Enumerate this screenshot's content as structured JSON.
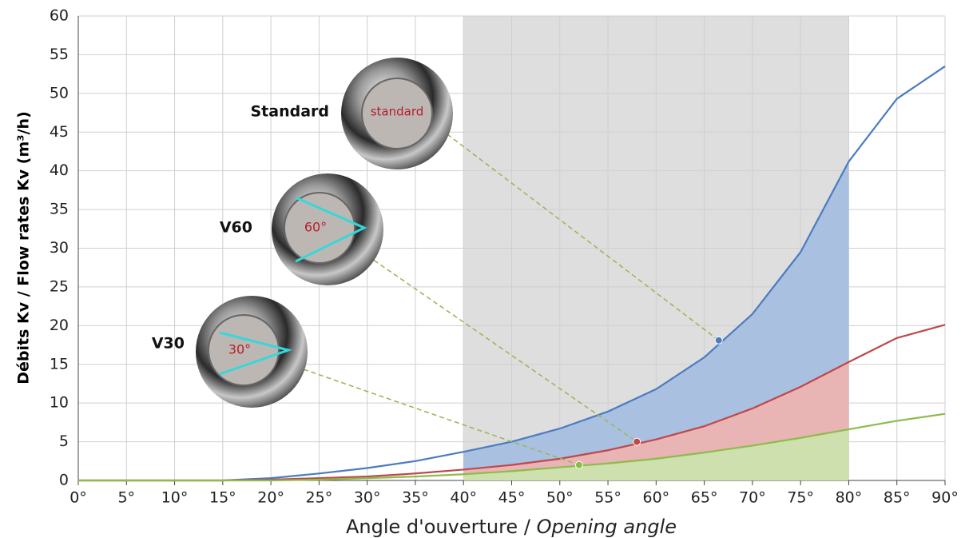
{
  "chart_data": {
    "type": "line",
    "xlabel_parts": [
      "Angle d'ouverture /",
      "Opening angle"
    ],
    "ylabel": "Débits Kv / Flow rates Kv (m³/h)",
    "x": [
      0,
      5,
      10,
      15,
      20,
      25,
      30,
      35,
      40,
      45,
      50,
      55,
      60,
      65,
      70,
      75,
      80,
      85,
      90
    ],
    "series": [
      {
        "name": "Standard",
        "color": "#4a7cc0",
        "fill": "#a9c0e0",
        "values": [
          0,
          0,
          0,
          0,
          0.3,
          0.9,
          1.6,
          2.5,
          3.7,
          5,
          6.7,
          8.9,
          11.8,
          15.9,
          21.5,
          29.5,
          41.2,
          49.3,
          53.5
        ]
      },
      {
        "name": "V60",
        "color": "#c0474a",
        "fill": "#e8b4b4",
        "values": [
          0,
          0,
          0,
          0,
          0.1,
          0.3,
          0.5,
          0.9,
          1.4,
          2,
          2.8,
          3.9,
          5.3,
          7,
          9.3,
          12.1,
          15.3,
          18.4,
          20.1
        ]
      },
      {
        "name": "V30",
        "color": "#8cbc4a",
        "fill": "#cde0ad",
        "values": [
          0,
          0,
          0,
          0,
          0,
          0.1,
          0.3,
          0.5,
          0.8,
          1.2,
          1.7,
          2.2,
          2.8,
          3.6,
          4.5,
          5.5,
          6.6,
          7.7,
          8.6
        ]
      }
    ],
    "annotations": [
      {
        "image_label": "standard",
        "x": 66.5,
        "y": 18.1
      },
      {
        "image_label": "60°",
        "x": 58,
        "y": 5
      },
      {
        "image_label": "30°",
        "x": 52,
        "y": 2
      }
    ],
    "highlight_range": [
      40,
      80
    ],
    "xlim": [
      0,
      90
    ],
    "ylim": [
      0,
      60
    ],
    "xticks": [
      {
        "value": 0,
        "label": "0°"
      },
      {
        "value": 5,
        "label": "5°"
      },
      {
        "value": 10,
        "label": "10°"
      },
      {
        "value": 15,
        "label": "15°"
      },
      {
        "value": 20,
        "label": "20°"
      },
      {
        "value": 25,
        "label": "25°"
      },
      {
        "value": 30,
        "label": "30°"
      },
      {
        "value": 35,
        "label": "35°"
      },
      {
        "value": 40,
        "label": "40°"
      },
      {
        "value": 45,
        "label": "45°"
      },
      {
        "value": 50,
        "label": "50°"
      },
      {
        "value": 55,
        "label": "55°"
      },
      {
        "value": 60,
        "label": "60°"
      },
      {
        "value": 65,
        "label": "65°"
      },
      {
        "value": 70,
        "label": "70°"
      },
      {
        "value": 75,
        "label": "75°"
      },
      {
        "value": 80,
        "label": "80°"
      },
      {
        "value": 85,
        "label": "85°"
      },
      {
        "value": 90,
        "label": "90°"
      }
    ],
    "yticks": [
      0,
      5,
      10,
      15,
      20,
      25,
      30,
      35,
      40,
      45,
      50,
      55,
      60
    ],
    "grid": true
  }
}
